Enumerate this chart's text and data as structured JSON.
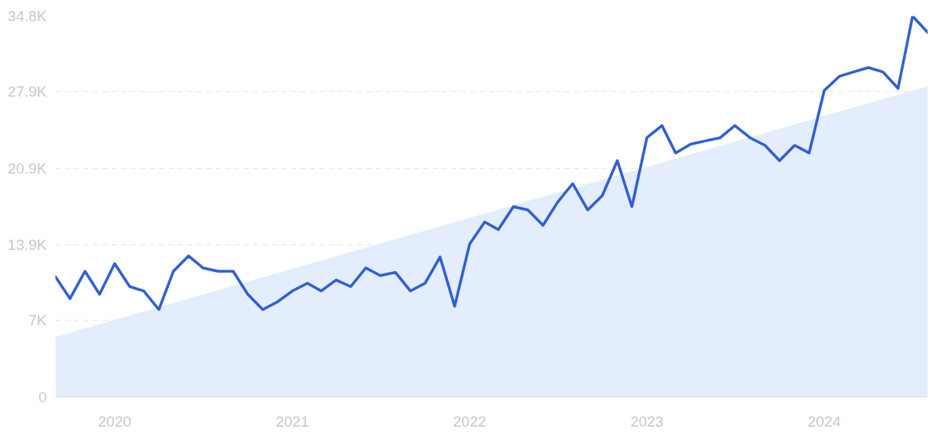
{
  "chart_data": {
    "type": "line",
    "x": [
      "2019-09",
      "2019-10",
      "2019-11",
      "2019-12",
      "2020-01",
      "2020-02",
      "2020-03",
      "2020-04",
      "2020-05",
      "2020-06",
      "2020-07",
      "2020-08",
      "2020-09",
      "2020-10",
      "2020-11",
      "2020-12",
      "2021-01",
      "2021-02",
      "2021-03",
      "2021-04",
      "2021-05",
      "2021-06",
      "2021-07",
      "2021-08",
      "2021-09",
      "2021-10",
      "2021-11",
      "2021-12",
      "2022-01",
      "2022-02",
      "2022-03",
      "2022-04",
      "2022-05",
      "2022-06",
      "2022-07",
      "2022-08",
      "2022-09",
      "2022-10",
      "2022-11",
      "2022-12",
      "2023-01",
      "2023-02",
      "2023-03",
      "2023-04",
      "2023-05",
      "2023-06",
      "2023-07",
      "2023-08",
      "2023-09",
      "2023-10",
      "2023-11",
      "2023-12",
      "2024-01",
      "2024-02",
      "2024-03",
      "2024-04",
      "2024-05",
      "2024-06",
      "2024-07",
      "2024-08"
    ],
    "series": [
      {
        "type": "area",
        "color": "#e3edfb",
        "x": [
          "2019-09",
          "2024-08"
        ],
        "values": [
          5500,
          28400
        ]
      },
      {
        "color": "#2f5fd3",
        "values": [
          11000,
          9000,
          11500,
          9400,
          12200,
          10100,
          9700,
          8000,
          11500,
          12900,
          11800,
          11500,
          11500,
          9400,
          8000,
          8700,
          9700,
          10400,
          9700,
          10700,
          10100,
          11800,
          11100,
          11400,
          9700,
          10400,
          12800,
          8300,
          14000,
          16000,
          15300,
          17400,
          17100,
          15700,
          17800,
          19500,
          17100,
          18400,
          21600,
          17400,
          23700,
          24800,
          22300,
          23100,
          23400,
          23700,
          24800,
          23700,
          23000,
          21600,
          23000,
          22300,
          28000,
          29300,
          29700,
          30100,
          29700,
          28200,
          34800,
          33300
        ]
      }
    ],
    "xlim": [
      "2019-09",
      "2024-08"
    ],
    "xticks": [
      "2020",
      "2021",
      "2022",
      "2023",
      "2024"
    ],
    "ylim": [
      0,
      34800
    ],
    "yticks": [
      0,
      {
        "value": 7000,
        "label": "7K"
      },
      {
        "value": 13900,
        "label": "13.9K"
      },
      {
        "value": 20900,
        "label": "20.9K"
      },
      {
        "value": 27900,
        "label": "27.9K"
      },
      {
        "value": 34800,
        "label": "34.8K"
      }
    ],
    "grid": "y",
    "line_style": "solid"
  }
}
